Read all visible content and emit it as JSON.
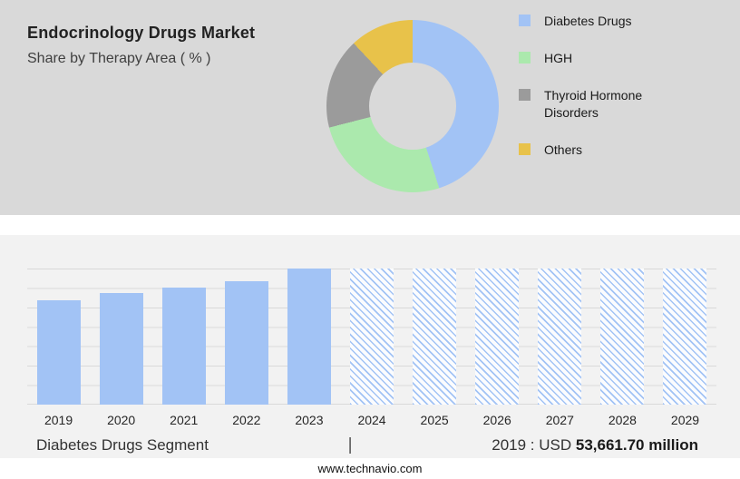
{
  "header": {
    "title": "Endocrinology Drugs Market",
    "subtitle": "Share by Therapy Area ( % )"
  },
  "donut": {
    "segments": [
      {
        "label": "Diabetes Drugs",
        "value": 45,
        "color": "#a2c3f5"
      },
      {
        "label": "HGH",
        "value": 26,
        "color": "#abe9ad"
      },
      {
        "label": "Thyroid Hormone Disorders",
        "value": 17,
        "color": "#9b9b9b"
      },
      {
        "label": "Others",
        "value": 12,
        "color": "#e8c24a"
      }
    ]
  },
  "bar_chart": {
    "years": [
      "2019",
      "2020",
      "2021",
      "2022",
      "2023",
      "2024",
      "2025",
      "2026",
      "2027",
      "2028",
      "2029"
    ],
    "heights_pct": [
      77,
      82,
      86,
      91,
      100,
      100,
      100,
      100,
      100,
      100,
      100
    ],
    "forecast_start_year": "2024",
    "solid_color": "#a2c3f5"
  },
  "segment_row": {
    "segment_label": "Diabetes Drugs Segment",
    "separator": "|",
    "value_prefix": "2019 : USD ",
    "value_bold": "53,661.70 million"
  },
  "footer": {
    "website": "www.technavio.com"
  },
  "chart_data": [
    {
      "type": "pie",
      "title": "Endocrinology Drugs Market",
      "subtitle": "Share by Therapy Area ( % )",
      "donut": true,
      "legend_position": "right",
      "labels": [
        "Diabetes Drugs",
        "HGH",
        "Thyroid Hormone Disorders",
        "Others"
      ],
      "values": [
        45,
        26,
        17,
        12
      ],
      "colors": [
        "#a2c3f5",
        "#abe9ad",
        "#9b9b9b",
        "#e8c24a"
      ]
    },
    {
      "type": "bar",
      "categories": [
        "2019",
        "2020",
        "2021",
        "2022",
        "2023",
        "2024",
        "2025",
        "2026",
        "2027",
        "2028",
        "2029"
      ],
      "values_relative_pct": [
        77,
        82,
        86,
        91,
        100,
        100,
        100,
        100,
        100,
        100,
        100
      ],
      "historic_solid_years": [
        "2019",
        "2020",
        "2021",
        "2022",
        "2023"
      ],
      "forecast_hatched_years": [
        "2024",
        "2025",
        "2026",
        "2027",
        "2028",
        "2029"
      ],
      "data_label": {
        "year": "2019",
        "value": "USD 53,661.70 million",
        "segment": "Diabetes Drugs Segment"
      },
      "xlabel": "",
      "ylabel": "",
      "grid": true,
      "legend_position": "none"
    }
  ]
}
